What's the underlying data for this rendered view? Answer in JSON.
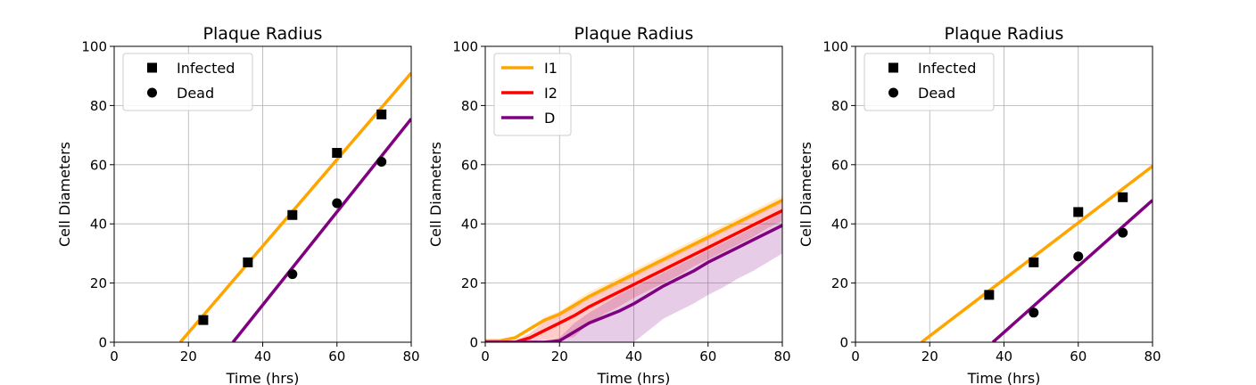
{
  "chart_data": [
    {
      "type": "scatter",
      "title": "Plaque Radius",
      "xlabel": "Time (hrs)",
      "ylabel": "Cell Diameters",
      "xlim": [
        0,
        80
      ],
      "ylim": [
        0,
        100
      ],
      "xticks": [
        0,
        20,
        40,
        60,
        80
      ],
      "yticks": [
        0,
        20,
        40,
        60,
        80,
        100
      ],
      "grid": true,
      "legend_position": "top-left",
      "series": [
        {
          "name": "Infected",
          "marker": "square",
          "color": "#000000",
          "x": [
            24,
            36,
            48,
            60,
            72
          ],
          "y": [
            7.5,
            27,
            43,
            64,
            77
          ]
        },
        {
          "name": "Dead",
          "marker": "circle",
          "color": "#000000",
          "x": [
            48,
            60,
            72
          ],
          "y": [
            23,
            47,
            61
          ]
        }
      ],
      "fit_lines": [
        {
          "color": "#ffa500",
          "x": [
            17.8,
            80
          ],
          "y": [
            0,
            91
          ]
        },
        {
          "color": "#800080",
          "x": [
            32,
            80
          ],
          "y": [
            0,
            75.5
          ]
        }
      ]
    },
    {
      "type": "line",
      "title": "Plaque Radius",
      "xlabel": "Time (hrs)",
      "ylabel": "Cell Diameters",
      "xlim": [
        0,
        80
      ],
      "ylim": [
        0,
        100
      ],
      "xticks": [
        0,
        20,
        40,
        60,
        80
      ],
      "yticks": [
        0,
        20,
        40,
        60,
        80,
        100
      ],
      "grid": true,
      "legend_position": "top-left",
      "x": [
        0,
        4,
        8,
        12,
        16,
        20,
        24,
        28,
        32,
        36,
        40,
        44,
        48,
        52,
        56,
        60,
        64,
        68,
        72,
        76,
        80
      ],
      "series": [
        {
          "name": "I1",
          "color": "#ffa500",
          "values": [
            0.5,
            0.5,
            1.5,
            4.5,
            7.5,
            9.5,
            12.5,
            15.5,
            18,
            20.5,
            23,
            25.5,
            28,
            30.5,
            33,
            35.5,
            38,
            40.5,
            43,
            45.5,
            48
          ],
          "lower": [
            0.5,
            0.5,
            1.2,
            4,
            6.8,
            8.8,
            11.5,
            14.5,
            17,
            19.5,
            22,
            24.5,
            27,
            29.5,
            32,
            34.5,
            37,
            39.5,
            42,
            44.5,
            47
          ],
          "upper": [
            0.7,
            0.7,
            2,
            5.2,
            8.5,
            10.5,
            13.8,
            17,
            19.5,
            22,
            24.5,
            27,
            29.5,
            32,
            34.5,
            37,
            39.5,
            42,
            44.5,
            47,
            49.5
          ]
        },
        {
          "name": "I2",
          "color": "#ff0000",
          "values": [
            0,
            0,
            0,
            1.5,
            4,
            6.5,
            9,
            12,
            14.5,
            17,
            19.5,
            22,
            24.5,
            27,
            29.5,
            32,
            34.5,
            37,
            39.5,
            42,
            44.5
          ],
          "lower": [
            0,
            0,
            0,
            0.2,
            0.8,
            0.8,
            1.8,
            6.5,
            9.5,
            12,
            15,
            17.5,
            20,
            22.5,
            25.5,
            28,
            30.5,
            33,
            35.5,
            38.5,
            41
          ],
          "upper": [
            0.3,
            0.3,
            0.5,
            3,
            7,
            9.8,
            12.5,
            15,
            17.5,
            20,
            22.5,
            25,
            27.5,
            30,
            32.5,
            35,
            37.5,
            40,
            42.5,
            45,
            47.5
          ]
        },
        {
          "name": "D",
          "color": "#800080",
          "values": [
            0,
            0,
            0,
            0,
            0,
            0.5,
            3.5,
            6.5,
            8.5,
            10.5,
            13,
            16,
            19,
            21.5,
            24,
            27,
            29.5,
            32,
            34.5,
            37,
            39.5
          ],
          "lower": [
            0,
            0,
            0,
            0,
            0,
            0,
            0,
            0,
            0,
            0,
            0,
            4,
            8,
            10.5,
            13,
            16,
            18.5,
            21.5,
            24,
            27,
            30
          ],
          "upper": [
            0,
            0,
            0,
            0,
            0,
            1.5,
            6.5,
            10,
            13,
            16,
            18.5,
            21,
            23.5,
            26,
            28.5,
            31,
            33.5,
            36,
            38.5,
            41,
            44
          ]
        }
      ]
    },
    {
      "type": "scatter",
      "title": "Plaque Radius",
      "xlabel": "Time (hrs)",
      "ylabel": "Cell Diameters",
      "xlim": [
        0,
        80
      ],
      "ylim": [
        0,
        100
      ],
      "xticks": [
        0,
        20,
        40,
        60,
        80
      ],
      "yticks": [
        0,
        20,
        40,
        60,
        80,
        100
      ],
      "grid": true,
      "legend_position": "top-left",
      "series": [
        {
          "name": "Infected",
          "marker": "square",
          "color": "#000000",
          "x": [
            36,
            48,
            60,
            72
          ],
          "y": [
            16,
            27,
            44,
            49
          ]
        },
        {
          "name": "Dead",
          "marker": "circle",
          "color": "#000000",
          "x": [
            48,
            60,
            72
          ],
          "y": [
            10,
            29,
            37
          ]
        }
      ],
      "fit_lines": [
        {
          "color": "#ffa500",
          "x": [
            17.8,
            80
          ],
          "y": [
            0,
            59.5
          ]
        },
        {
          "color": "#800080",
          "x": [
            37,
            80
          ],
          "y": [
            0,
            48
          ]
        }
      ]
    }
  ]
}
